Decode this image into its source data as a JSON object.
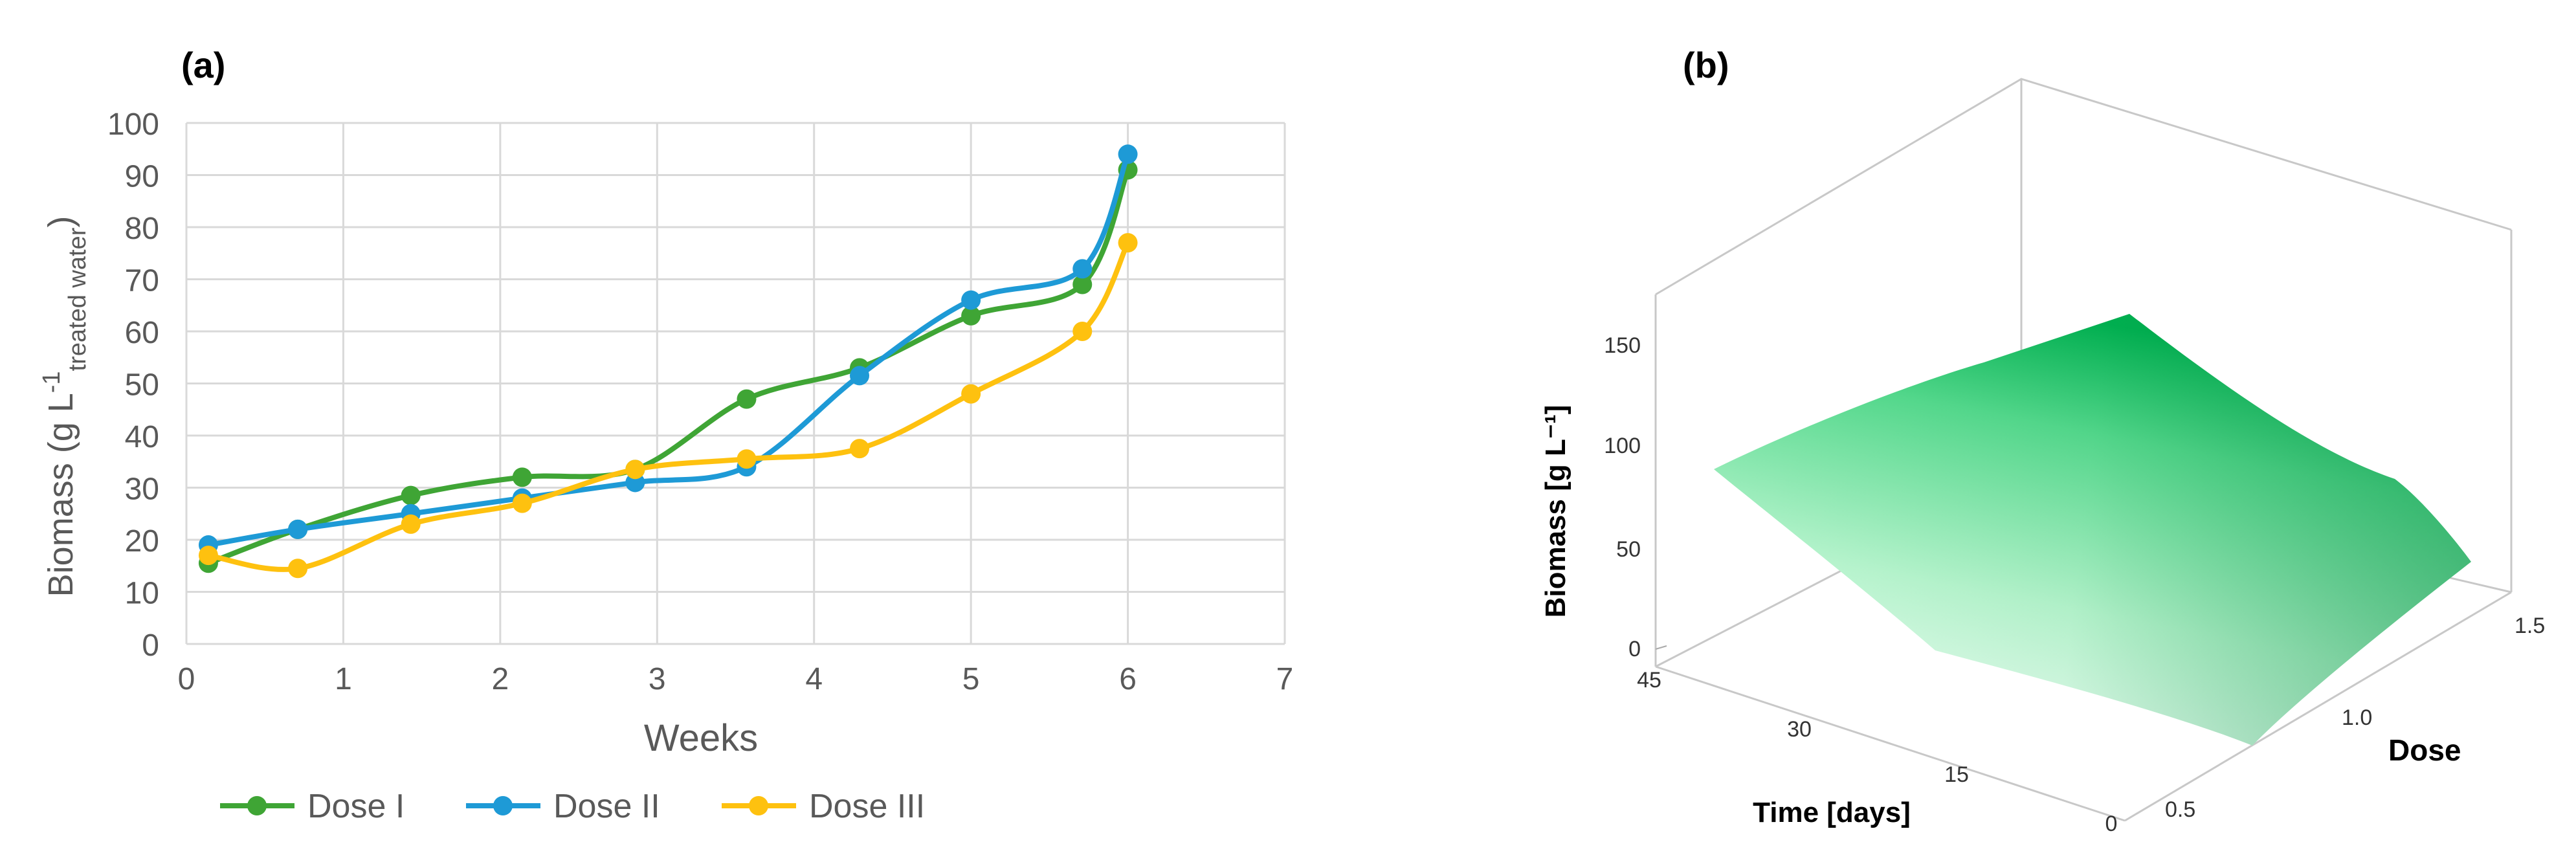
{
  "panels": {
    "a_label": "(a)",
    "b_label": "(b)"
  },
  "colors": {
    "dose_i": "#3fa535",
    "dose_ii": "#1e9ad6",
    "dose_iii": "#fec10f",
    "grid": "#d9d9d9",
    "axis_text": "#595959",
    "surface_dark": "#00b050",
    "surface_light": "#f3fff8"
  },
  "chart_data": [
    {
      "type": "line",
      "title": "",
      "xlabel": "Weeks",
      "ylabel": "Biomass (g L",
      "ylabel_sup": "-1",
      "ylabel_sub": "treated water",
      "ylabel_close": ")",
      "xlim": [
        0,
        7
      ],
      "ylim": [
        0,
        100
      ],
      "xticks": [
        "0",
        "1",
        "2",
        "3",
        "4",
        "5",
        "6",
        "7"
      ],
      "yticks": [
        "0",
        "10",
        "20",
        "30",
        "40",
        "50",
        "60",
        "70",
        "80",
        "90",
        "100"
      ],
      "grid": true,
      "legend_position": "bottom",
      "series": [
        {
          "name": "Dose I",
          "color": "#3fa535",
          "x": [
            0.14,
            0.71,
            1.43,
            2.14,
            2.86,
            3.57,
            4.29,
            5.0,
            5.71,
            6.0
          ],
          "y": [
            15.5,
            22,
            28.5,
            32,
            33.5,
            47,
            53,
            63,
            69,
            91
          ]
        },
        {
          "name": "Dose II",
          "color": "#1e9ad6",
          "x": [
            0.14,
            0.71,
            1.43,
            2.14,
            2.86,
            3.57,
            4.29,
            5.0,
            5.71,
            6.0
          ],
          "y": [
            19,
            22,
            25,
            28,
            31,
            34,
            51.5,
            66,
            72,
            94
          ]
        },
        {
          "name": "Dose III",
          "color": "#fec10f",
          "x": [
            0.14,
            0.71,
            1.43,
            2.14,
            2.86,
            3.57,
            4.29,
            5.0,
            5.71,
            6.0
          ],
          "y": [
            17,
            14.5,
            23,
            27,
            33.5,
            35.5,
            37.5,
            48,
            60,
            77
          ]
        }
      ]
    },
    {
      "type": "surface",
      "title": "",
      "xlabel": "Time [days]",
      "ylabel": "Dose",
      "zlabel": "Biomass [g L⁻¹]",
      "x_ticks": [
        "45",
        "30",
        "15",
        "0"
      ],
      "y_ticks": [
        "0.5",
        "1.0",
        "1.5"
      ],
      "z_ticks": [
        "0",
        "50",
        "100",
        "150"
      ],
      "xlim": [
        0,
        45
      ],
      "ylim": [
        0.5,
        1.5
      ],
      "zlim": [
        0,
        150
      ],
      "surface_corners": [
        {
          "time": 45,
          "dose": 0.5,
          "biomass": 90
        },
        {
          "time": 45,
          "dose": 1.5,
          "biomass": 150
        },
        {
          "time": 0,
          "dose": 1.5,
          "biomass": 35
        },
        {
          "time": 0,
          "dose": 0.5,
          "biomass": 5
        }
      ]
    }
  ]
}
